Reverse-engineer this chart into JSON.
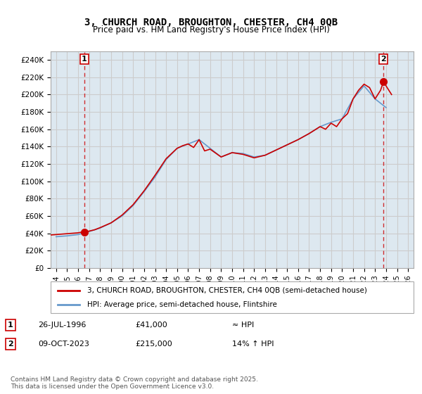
{
  "title": "3, CHURCH ROAD, BROUGHTON, CHESTER, CH4 0QB",
  "subtitle": "Price paid vs. HM Land Registry's House Price Index (HPI)",
  "ylabel": "",
  "ylim": [
    0,
    250000
  ],
  "yticks": [
    0,
    20000,
    40000,
    60000,
    80000,
    100000,
    120000,
    140000,
    160000,
    180000,
    200000,
    220000,
    240000
  ],
  "xlim_start": 1993.5,
  "xlim_end": 2026.5,
  "xticks": [
    1994,
    1995,
    1996,
    1997,
    1998,
    1999,
    2000,
    2001,
    2002,
    2003,
    2004,
    2005,
    2006,
    2007,
    2008,
    2009,
    2010,
    2011,
    2012,
    2013,
    2014,
    2015,
    2016,
    2017,
    2018,
    2019,
    2020,
    2021,
    2022,
    2023,
    2024,
    2025,
    2026
  ],
  "price_color": "#cc0000",
  "hpi_color": "#6699cc",
  "grid_color": "#cccccc",
  "bg_color": "#e8e8f0",
  "plot_bg_color": "#dde8f0",
  "marker1_x": 1996.57,
  "marker1_y": 41000,
  "marker2_x": 2023.77,
  "marker2_y": 215000,
  "annotation1": "1",
  "annotation2": "2",
  "legend_label1": "3, CHURCH ROAD, BROUGHTON, CHESTER, CH4 0QB (semi-detached house)",
  "legend_label2": "HPI: Average price, semi-detached house, Flintshire",
  "table_row1": [
    "1",
    "26-JUL-1996",
    "£41,000",
    "≈ HPI"
  ],
  "table_row2": [
    "2",
    "09-OCT-2023",
    "£215,000",
    "14% ↑ HPI"
  ],
  "footer": "Contains HM Land Registry data © Crown copyright and database right 2025.\nThis data is licensed under the Open Government Licence v3.0.",
  "hpi_data_x": [
    1994,
    1995,
    1996,
    1997,
    1998,
    1999,
    2000,
    2001,
    2002,
    2003,
    2004,
    2005,
    2006,
    2007,
    2008,
    2009,
    2010,
    2011,
    2012,
    2013,
    2014,
    2015,
    2016,
    2017,
    2018,
    2019,
    2020,
    2021,
    2022,
    2023,
    2024
  ],
  "hpi_data_y": [
    36000,
    37000,
    38500,
    42000,
    46000,
    52000,
    60000,
    72000,
    88000,
    105000,
    125000,
    138000,
    143000,
    148000,
    138000,
    128000,
    133000,
    132000,
    128000,
    130000,
    136000,
    142000,
    148000,
    155000,
    163000,
    168000,
    172000,
    195000,
    210000,
    195000,
    185000
  ],
  "price_data_x": [
    1993.5,
    1994,
    1994.5,
    1995,
    1995.5,
    1996,
    1996.2,
    1996.4,
    1996.57,
    1996.7,
    1997,
    1997.5,
    1998,
    1999,
    2000,
    2001,
    2002,
    2003,
    2004,
    2005,
    2005.5,
    2006,
    2006.5,
    2007,
    2007.5,
    2008,
    2009,
    2010,
    2011,
    2012,
    2013,
    2014,
    2015,
    2016,
    2017,
    2018,
    2018.5,
    2019,
    2019.5,
    2020,
    2020.5,
    2021,
    2021.5,
    2022,
    2022.5,
    2023,
    2023.5,
    2023.77,
    2024,
    2024.5
  ],
  "price_data_y": [
    38000,
    38500,
    39000,
    39500,
    40000,
    40500,
    41000,
    41200,
    41000,
    41500,
    42500,
    44000,
    46500,
    52000,
    61000,
    73000,
    89000,
    107000,
    126000,
    138000,
    141000,
    143000,
    139000,
    148000,
    135000,
    137000,
    128000,
    133000,
    131000,
    127000,
    130000,
    136000,
    142000,
    148000,
    155000,
    163000,
    160000,
    167000,
    163000,
    172000,
    178000,
    195000,
    205000,
    212000,
    208000,
    195000,
    205000,
    215000,
    210000,
    200000
  ]
}
